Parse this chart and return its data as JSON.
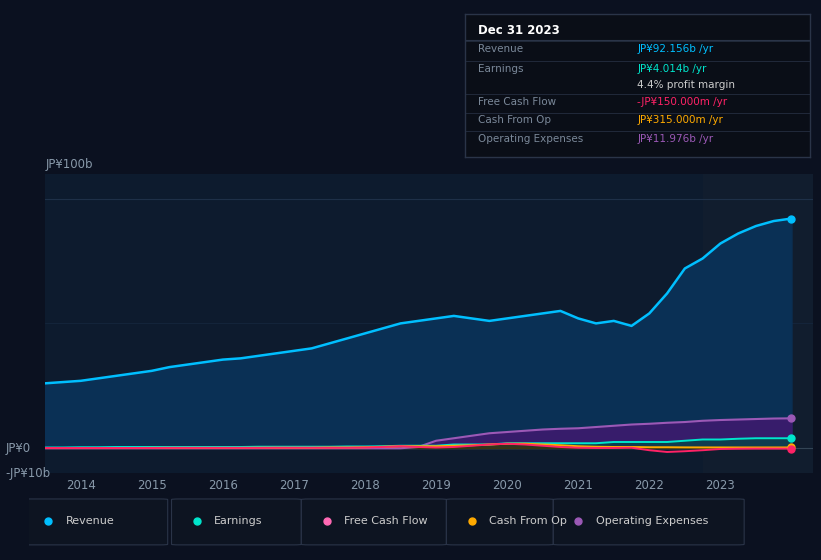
{
  "background_color": "#0b1120",
  "plot_bg_color": "#0d1b2e",
  "plot_bg_right_color": "#131f30",
  "ylabel_top": "JP¥100b",
  "ylabel_zero": "JP¥0",
  "ylabel_neg": "-JP¥10b",
  "xlabel_years": [
    2014,
    2015,
    2016,
    2017,
    2018,
    2019,
    2020,
    2021,
    2022,
    2023
  ],
  "ylim": [
    -10,
    110
  ],
  "xlim_start": 2013.5,
  "xlim_end": 2024.3,
  "revenue_color": "#00bfff",
  "earnings_color": "#00e5cc",
  "fcf_color": "#ff2266",
  "cashop_color": "#ffaa00",
  "opex_color": "#9b59b6",
  "revenue_fill_color": "#0a3055",
  "opex_fill_color": "#3d1a6e",
  "legend_items": [
    "Revenue",
    "Earnings",
    "Free Cash Flow",
    "Cash From Op",
    "Operating Expenses"
  ],
  "legend_colors": [
    "#00bfff",
    "#00e5cc",
    "#ff69b4",
    "#ffaa00",
    "#9b59b6"
  ],
  "info_title": "Dec 31 2023",
  "info_rows": [
    {
      "label": "Revenue",
      "value": "JP¥92.156b /yr",
      "value_color": "#00bfff"
    },
    {
      "label": "Earnings",
      "value": "JP¥4.014b /yr",
      "value_color": "#00e5cc"
    },
    {
      "label": "",
      "value": "4.4% profit margin",
      "value_color": "#cccccc"
    },
    {
      "label": "Free Cash Flow",
      "value": "-JP¥150.000m /yr",
      "value_color": "#ff2266"
    },
    {
      "label": "Cash From Op",
      "value": "JP¥315.000m /yr",
      "value_color": "#ffaa00"
    },
    {
      "label": "Operating Expenses",
      "value": "JP¥11.976b /yr",
      "value_color": "#9b59b6"
    }
  ],
  "years": [
    2013.5,
    2013.75,
    2014.0,
    2014.25,
    2014.5,
    2014.75,
    2015.0,
    2015.25,
    2015.5,
    2015.75,
    2016.0,
    2016.25,
    2016.5,
    2016.75,
    2017.0,
    2017.25,
    2017.5,
    2017.75,
    2018.0,
    2018.25,
    2018.5,
    2018.75,
    2019.0,
    2019.25,
    2019.5,
    2019.75,
    2020.0,
    2020.25,
    2020.5,
    2020.75,
    2021.0,
    2021.25,
    2021.5,
    2021.75,
    2022.0,
    2022.25,
    2022.5,
    2022.75,
    2023.0,
    2023.25,
    2023.5,
    2023.75,
    2024.0
  ],
  "revenue": [
    26,
    26.5,
    27,
    28,
    29,
    30,
    31,
    32.5,
    33.5,
    34.5,
    35.5,
    36,
    37,
    38,
    39,
    40,
    42,
    44,
    46,
    48,
    50,
    51,
    52,
    53,
    52,
    51,
    52,
    53,
    54,
    55,
    52,
    50,
    51,
    49,
    54,
    62,
    72,
    76,
    82,
    86,
    89,
    91,
    92
  ],
  "earnings": [
    0.3,
    0.3,
    0.4,
    0.4,
    0.5,
    0.5,
    0.5,
    0.5,
    0.5,
    0.5,
    0.5,
    0.5,
    0.6,
    0.6,
    0.6,
    0.6,
    0.6,
    0.7,
    0.7,
    0.8,
    1.0,
    1.0,
    1.0,
    1.5,
    1.5,
    1.5,
    2.0,
    2.0,
    2.0,
    2.0,
    2.0,
    2.0,
    2.5,
    2.5,
    2.5,
    2.5,
    3.0,
    3.5,
    3.5,
    3.8,
    4.0,
    4.0,
    4.0
  ],
  "fcf": [
    0.1,
    0.1,
    0.1,
    0.1,
    0.1,
    0.1,
    0.1,
    0.15,
    0.15,
    0.15,
    0.15,
    0.15,
    0.15,
    0.2,
    0.2,
    0.2,
    0.2,
    0.2,
    0.3,
    0.5,
    0.8,
    0.5,
    0.3,
    0.5,
    1.0,
    1.5,
    1.8,
    1.5,
    1.0,
    0.5,
    0.2,
    0.1,
    0.1,
    0.2,
    -0.8,
    -1.5,
    -1.2,
    -0.8,
    -0.3,
    -0.2,
    -0.15,
    -0.15,
    -0.15
  ],
  "cashop": [
    0.1,
    0.1,
    0.1,
    0.1,
    0.1,
    0.1,
    0.15,
    0.15,
    0.15,
    0.15,
    0.15,
    0.15,
    0.2,
    0.2,
    0.2,
    0.2,
    0.3,
    0.3,
    0.4,
    0.6,
    0.8,
    0.8,
    0.8,
    1.0,
    1.2,
    1.5,
    1.8,
    1.8,
    1.5,
    1.2,
    0.8,
    0.6,
    0.5,
    0.5,
    0.4,
    0.4,
    0.35,
    0.33,
    0.32,
    0.315,
    0.315,
    0.315,
    0.315
  ],
  "opex": [
    0.0,
    0.0,
    0.0,
    0.0,
    0.0,
    0.0,
    0.0,
    0.0,
    0.0,
    0.0,
    0.0,
    0.0,
    0.0,
    0.0,
    0.0,
    0.0,
    0.0,
    0.0,
    0.0,
    0.0,
    0.0,
    0.5,
    3.0,
    4.0,
    5.0,
    6.0,
    6.5,
    7.0,
    7.5,
    7.8,
    8.0,
    8.5,
    9.0,
    9.5,
    9.8,
    10.2,
    10.5,
    11.0,
    11.3,
    11.5,
    11.7,
    11.9,
    11.976
  ]
}
